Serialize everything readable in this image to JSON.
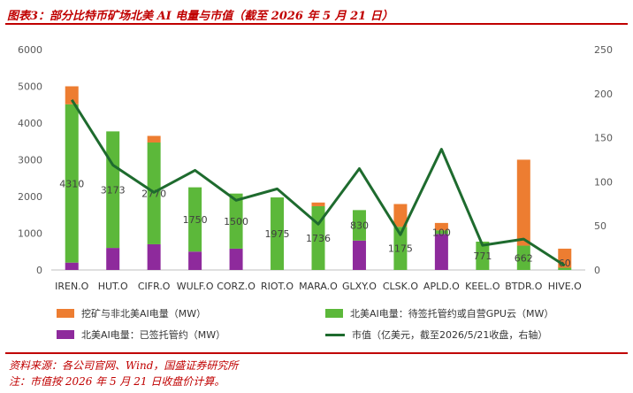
{
  "figure": {
    "title": "图表3：部分比特币矿场北美 AI 电量与市值（截至 2026 年 5 月 21 日）",
    "source": "资料来源：各公司官网、Wind，国盛证券研究所",
    "note": "注：市值按 2026 年 5 月 21 日收盘价计算。"
  },
  "legend": {
    "series_orange": "挖矿与非北美AI电量（MW）",
    "series_green": "北美AI电量：待签托管约或自营GPU云（MW）",
    "series_purple": "北美AI电量：已签托管约（MW）",
    "series_line": "市值（亿美元，截至2026/5/21收盘，右轴）"
  },
  "colors": {
    "orange": "#ed7d31",
    "green": "#5cb83a",
    "purple": "#8e2a9c",
    "line": "#1e6b2e",
    "title_red": "#c00000",
    "axis_text": "#595959"
  },
  "chart_data": {
    "type": "bar",
    "stacked": true,
    "categories": [
      "IREN.O",
      "HUT.O",
      "CIFR.O",
      "WULF.O",
      "CORZ.O",
      "RIOT.O",
      "MARA.O",
      "GLXY.O",
      "CLSK.O",
      "APLD.O",
      "KEEL.O",
      "BTDR.O",
      "HIVE.O"
    ],
    "series": [
      {
        "key": "purple",
        "name": "北美AI电量：已签托管约（MW）",
        "values": [
          200,
          600,
          700,
          500,
          580,
          0,
          0,
          800,
          0,
          980,
          0,
          0,
          0
        ]
      },
      {
        "key": "green",
        "name": "北美AI电量：待签托管约或自营GPU云（MW）",
        "values": [
          4310,
          3173,
          2770,
          1750,
          1500,
          1975,
          1736,
          830,
          1175,
          100,
          771,
          662,
          60
        ]
      },
      {
        "key": "orange",
        "name": "挖矿与非北美AI电量（MW）",
        "values": [
          490,
          0,
          180,
          0,
          0,
          0,
          100,
          0,
          620,
          200,
          0,
          2340,
          520
        ]
      }
    ],
    "data_labels": [
      "4310",
      "3173",
      "2770",
      "1750",
      "1500",
      "1975",
      "1736",
      "830",
      "1175",
      "100",
      "771",
      "662",
      "60"
    ],
    "line": {
      "name": "市值（亿美元，截至2026/5/21收盘，右轴）",
      "values": [
        193,
        119,
        88,
        113,
        79,
        92,
        52,
        115,
        40,
        137,
        28,
        35,
        5
      ]
    },
    "y_left": {
      "ylim": [
        0,
        6000
      ],
      "ticks": [
        "0",
        "1000",
        "2000",
        "3000",
        "4000",
        "5000",
        "6000"
      ]
    },
    "y_right": {
      "ylim": [
        0,
        250
      ],
      "ticks": [
        "0",
        "50",
        "100",
        "150",
        "200",
        "250"
      ]
    },
    "legend_position": "bottom",
    "grid": false
  }
}
